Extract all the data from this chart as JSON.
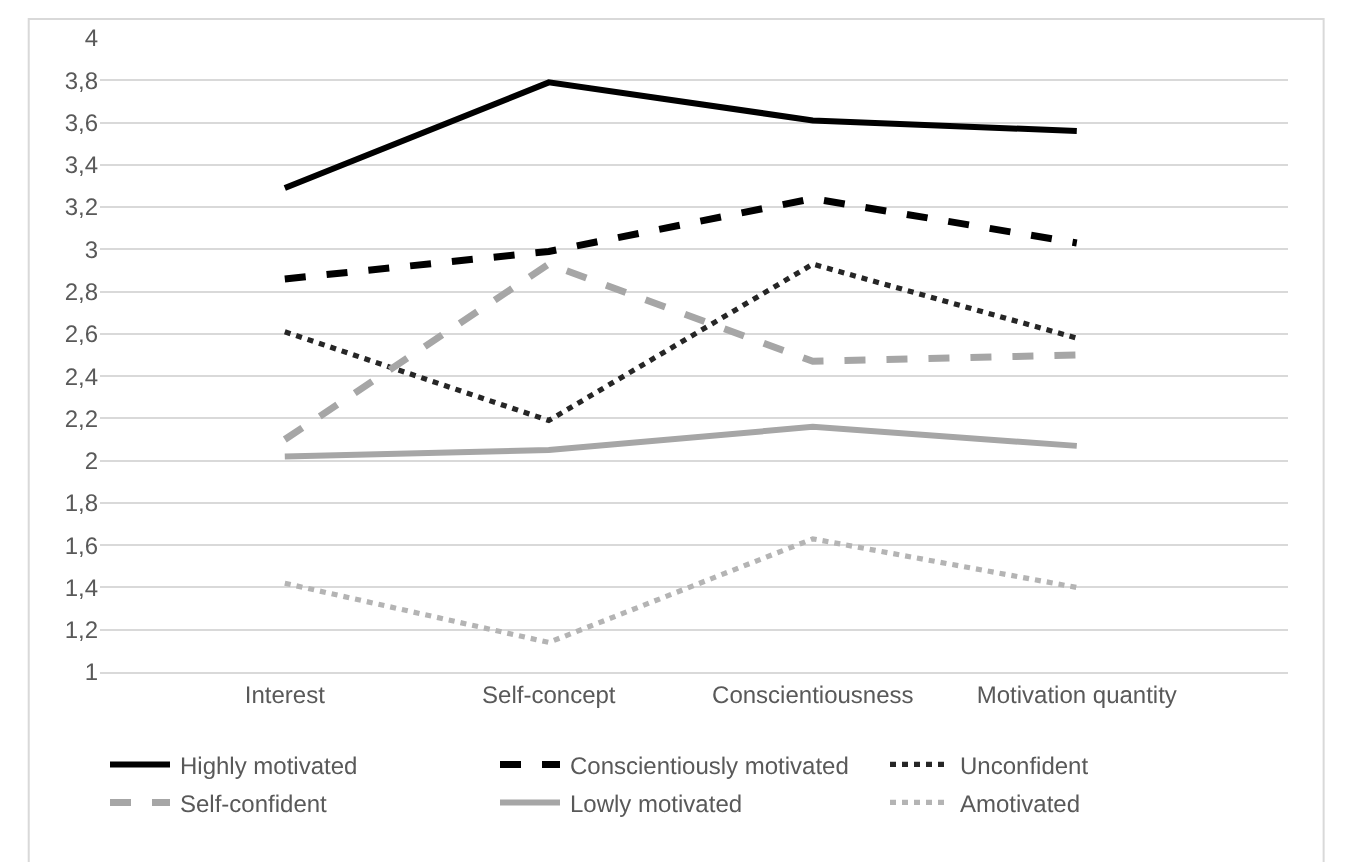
{
  "chart_data": {
    "type": "line",
    "categories": [
      "Interest",
      "Self-concept",
      "Conscientiousness",
      "Motivation quantity"
    ],
    "series": [
      {
        "name": "Highly motivated",
        "color": "#000000",
        "line_style": "solid",
        "values": [
          3.29,
          3.79,
          3.61,
          3.56
        ]
      },
      {
        "name": "Conscientiously motivated",
        "color": "#000000",
        "line_style": "dashed",
        "values": [
          2.86,
          2.99,
          3.24,
          3.03
        ]
      },
      {
        "name": "Unconfident",
        "color": "#262626",
        "line_style": "dotted",
        "values": [
          2.61,
          2.19,
          2.93,
          2.58
        ]
      },
      {
        "name": "Self-confident",
        "color": "#a6a6a6",
        "line_style": "dashed",
        "values": [
          2.1,
          2.93,
          2.47,
          2.5
        ]
      },
      {
        "name": "Lowly motivated",
        "color": "#a6a6a6",
        "line_style": "solid",
        "values": [
          2.02,
          2.05,
          2.16,
          2.07
        ]
      },
      {
        "name": "Amotivated",
        "color": "#b4b4b4",
        "line_style": "dotted",
        "values": [
          1.42,
          1.14,
          1.63,
          1.4
        ]
      }
    ],
    "ylim": [
      1,
      4
    ],
    "yticks": [
      1,
      {
        "value": 1.2,
        "label": "1,2"
      },
      {
        "value": 1.4,
        "label": "1,4"
      },
      {
        "value": 1.6,
        "label": "1,6"
      },
      {
        "value": 1.8,
        "label": "1,8"
      },
      2,
      {
        "value": 2.2,
        "label": "2,2"
      },
      {
        "value": 2.4,
        "label": "2,4"
      },
      {
        "value": 2.6,
        "label": "2,6"
      },
      {
        "value": 2.8,
        "label": "2,8"
      },
      3,
      {
        "value": 3.2,
        "label": "3,2"
      },
      {
        "value": 3.4,
        "label": "3,4"
      },
      {
        "value": 3.6,
        "label": "3,6"
      },
      {
        "value": 3.8,
        "label": "3,8"
      },
      4
    ],
    "grid": "y",
    "legend": "bottom",
    "marker": "none"
  }
}
